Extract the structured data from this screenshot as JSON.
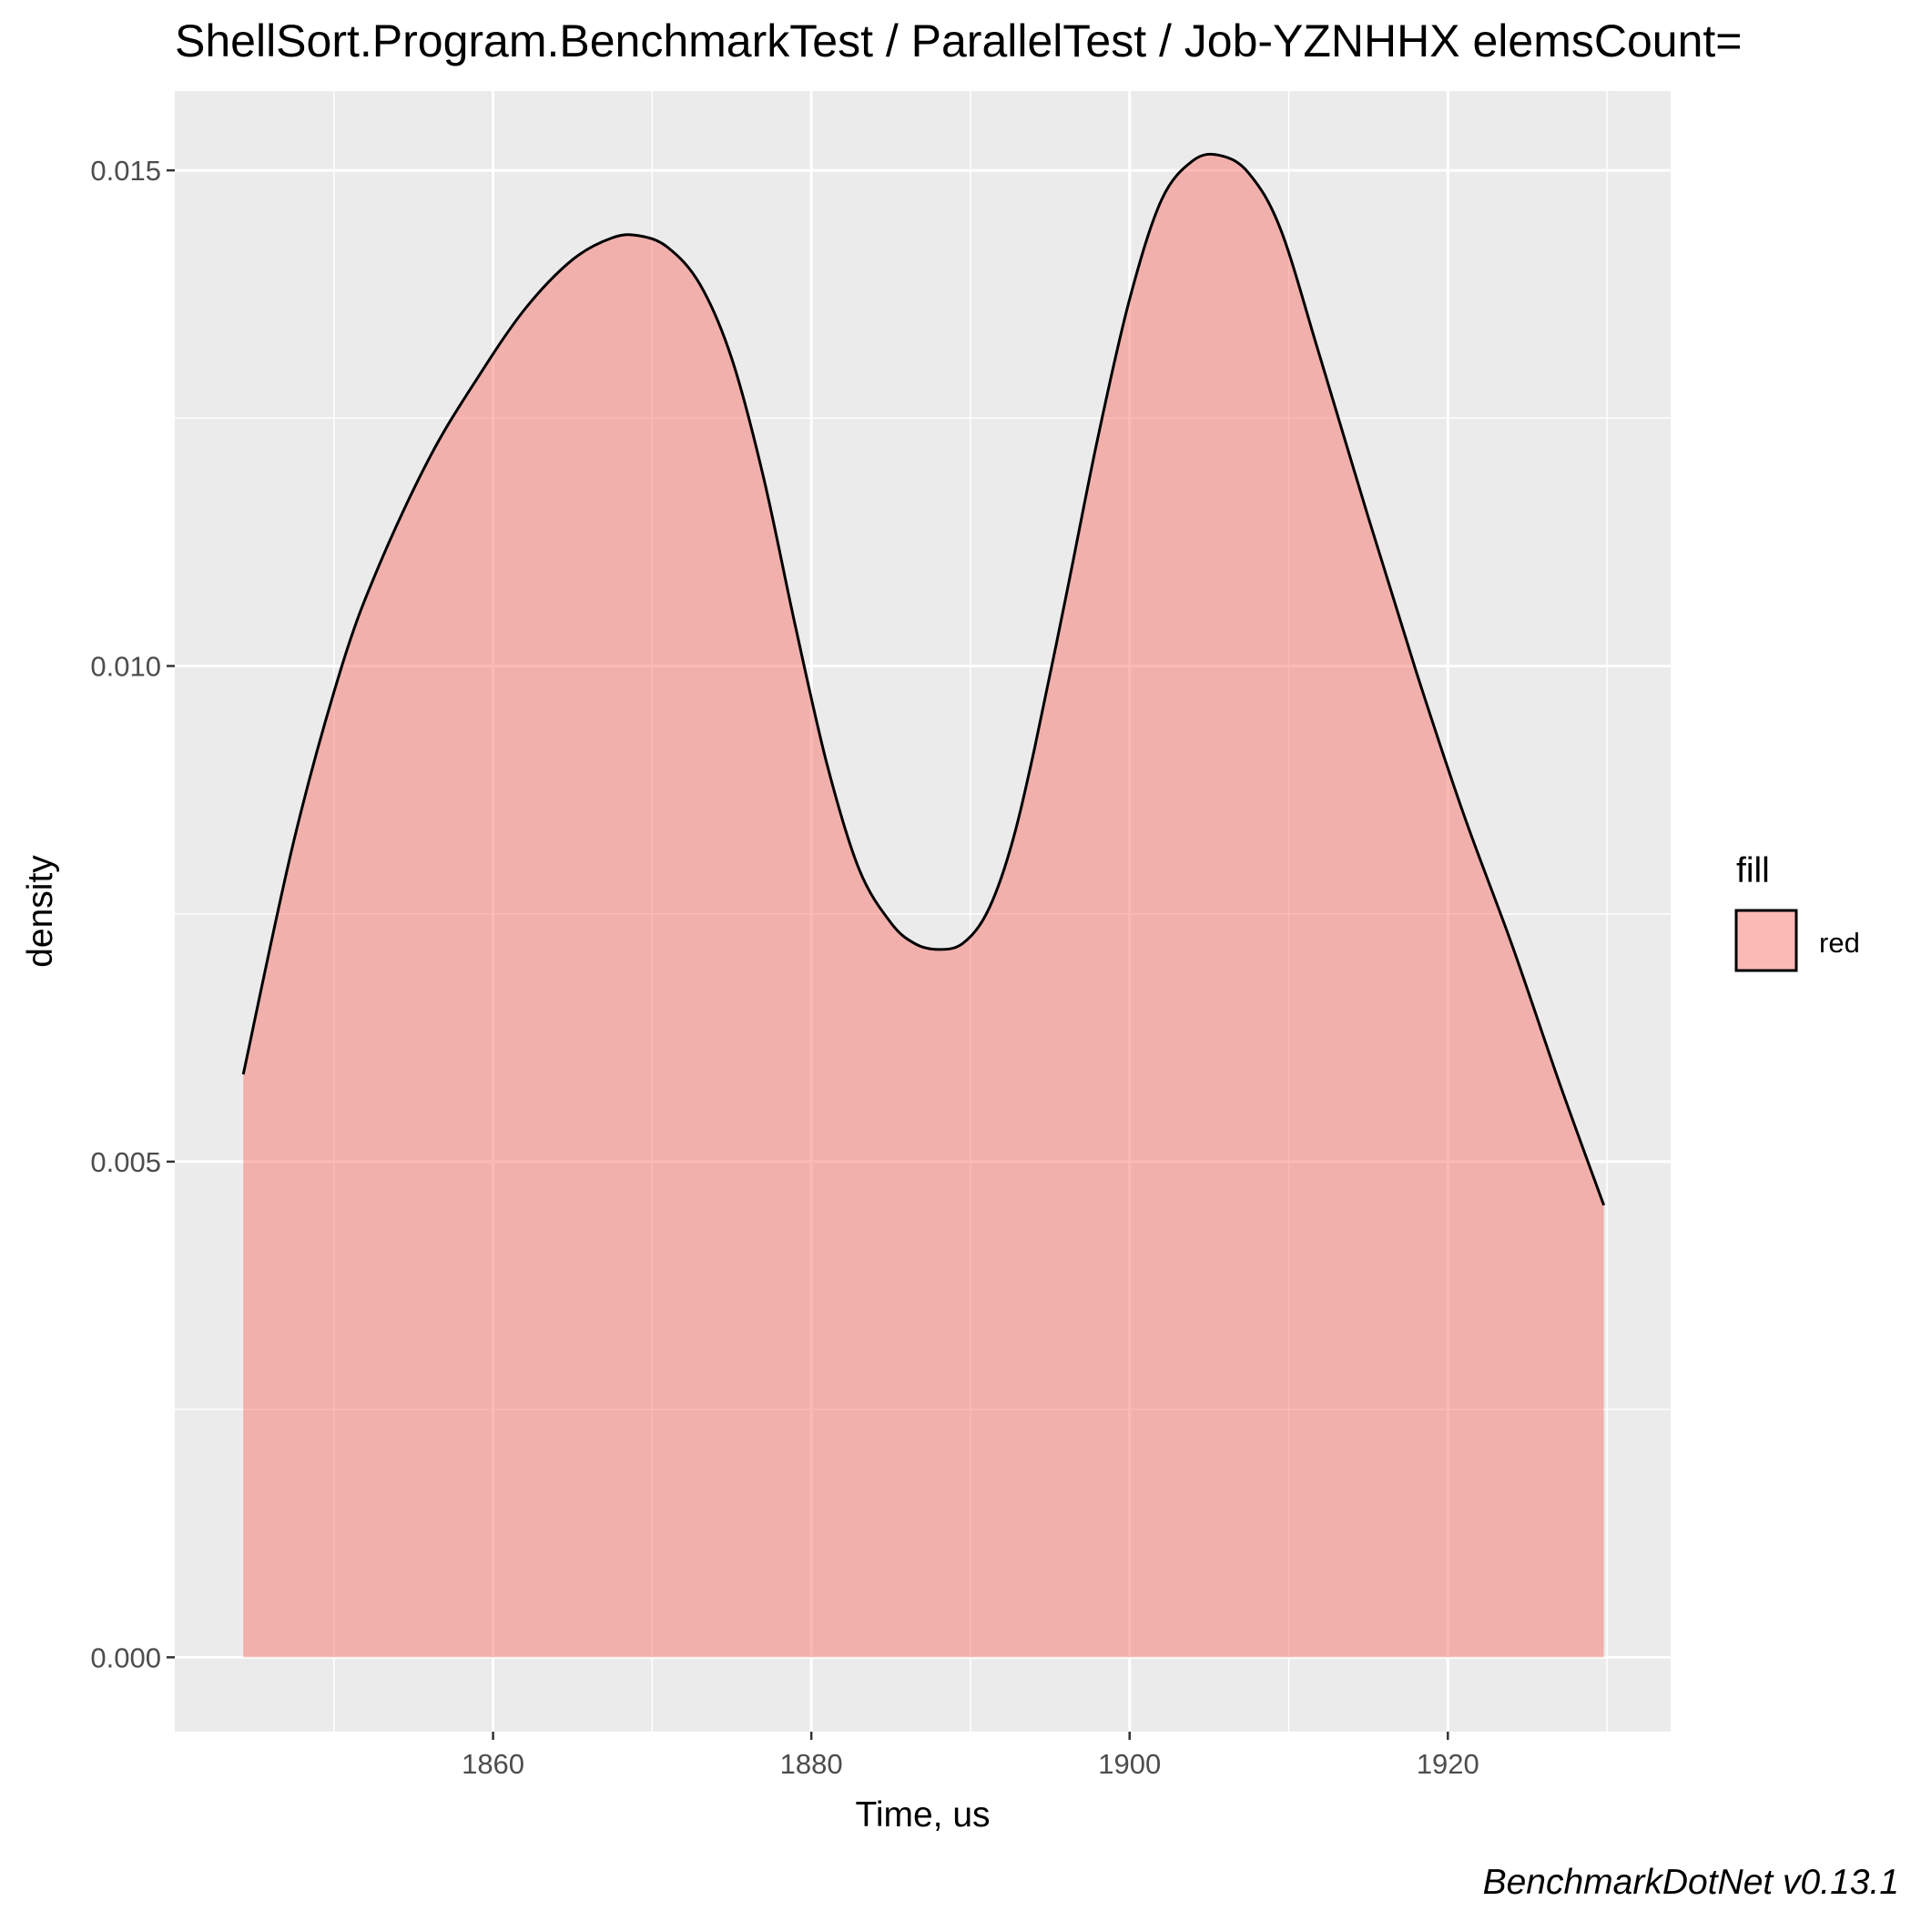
{
  "chart_data": {
    "type": "area",
    "title": "ShellSort.Program.BenchmarkTest / ParallelTest / Job-YZNHHX elemsCount=",
    "xlabel": "Time, us",
    "ylabel": "density",
    "caption": "BenchmarkDotNet v0.13.1",
    "xlim": [
      1840,
      1934
    ],
    "ylim": [
      -0.00075,
      0.0158
    ],
    "x_ticks": [
      1860,
      1880,
      1900,
      1920
    ],
    "x_tick_labels": [
      "1860",
      "1880",
      "1900",
      "1920"
    ],
    "x_minor_ticks": [
      1850,
      1870,
      1890,
      1910,
      1930
    ],
    "y_ticks": [
      0.0,
      0.005,
      0.01,
      0.015
    ],
    "y_tick_labels": [
      "0.000",
      "0.005",
      "0.010",
      "0.015"
    ],
    "y_minor_ticks": [
      0.0025,
      0.0075,
      0.0125
    ],
    "grid": true,
    "legend": {
      "title": "fill",
      "position": "right",
      "entries": [
        "red"
      ]
    },
    "series": [
      {
        "name": "red",
        "fill": "#F8766D",
        "fill_opacity": 0.5,
        "line_color": "#000000",
        "x": [
          1844.3,
          1847.5,
          1850.5,
          1852.8,
          1856.0,
          1859.0,
          1862.0,
          1865.0,
          1867.5,
          1869.2,
          1871.0,
          1873.0,
          1875.0,
          1877.0,
          1879.0,
          1881.0,
          1883.0,
          1885.0,
          1886.5,
          1888.0,
          1889.5,
          1891.0,
          1892.5,
          1894.0,
          1896.0,
          1898.0,
          1900.0,
          1902.0,
          1904.0,
          1905.7,
          1907.5,
          1909.5,
          1912.0,
          1915.0,
          1918.0,
          1921.0,
          1924.0,
          1927.0,
          1929.8
        ],
        "y": [
          0.00588,
          0.00825,
          0.01,
          0.011,
          0.0121,
          0.0129,
          0.0136,
          0.0141,
          0.01432,
          0.01434,
          0.01422,
          0.01385,
          0.0131,
          0.0119,
          0.0104,
          0.009,
          0.00795,
          0.00741,
          0.0072,
          0.00714,
          0.0072,
          0.0075,
          0.00815,
          0.00915,
          0.0107,
          0.0123,
          0.0137,
          0.0147,
          0.0151,
          0.01515,
          0.01497,
          0.0144,
          0.0131,
          0.0115,
          0.00995,
          0.0085,
          0.0072,
          0.0058,
          0.00456
        ]
      }
    ]
  }
}
